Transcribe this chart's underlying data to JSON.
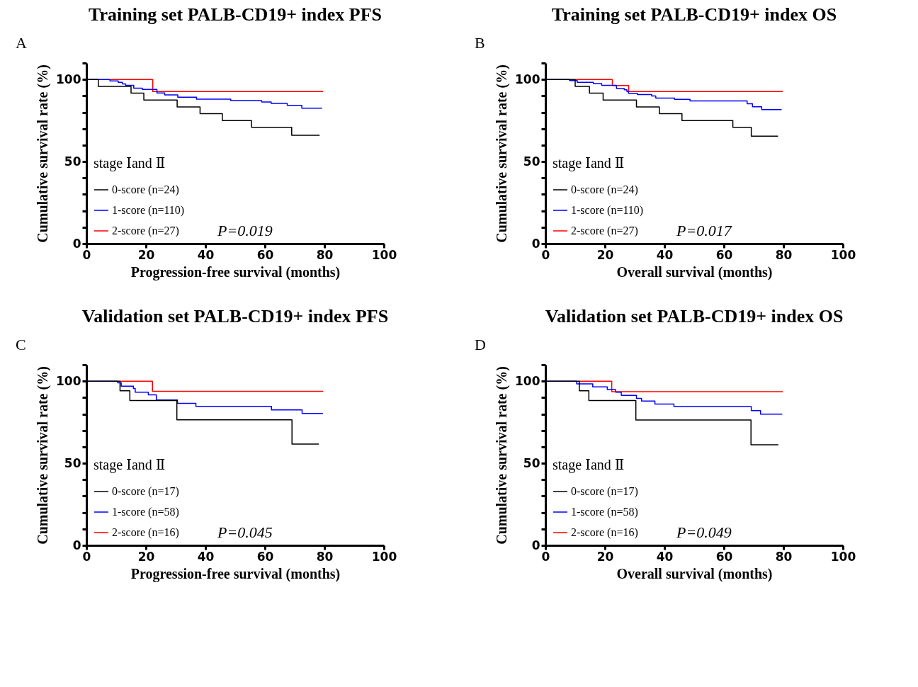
{
  "chart_data": [
    {
      "type": "step",
      "title": "Training set PALB-CD19+ index PFS",
      "xlabel": "Progression-free survival (months)",
      "ylabel": "Cumulative survival rate (%)",
      "legend_title": "stage Ⅰand Ⅱ",
      "legend": "bottom left",
      "grid": false,
      "annotations": [
        "A",
        "P=0.019"
      ],
      "xlim": [
        0,
        100
      ],
      "xticks": [
        0,
        20,
        40,
        60,
        80,
        100
      ],
      "ylim": [
        0,
        110
      ],
      "yticks": [
        0,
        {
          "value": 10,
          "label": null
        },
        {
          "value": 20,
          "label": null
        },
        {
          "value": 30,
          "label": null
        },
        {
          "value": 40,
          "label": null
        },
        50,
        {
          "value": 60,
          "label": null
        },
        {
          "value": 70,
          "label": null
        },
        {
          "value": 80,
          "label": null
        },
        {
          "value": 90,
          "label": null
        },
        100,
        {
          "value": 110,
          "label": null
        }
      ],
      "series": [
        {
          "name": "0-score (n=24)",
          "color": "#000000",
          "x": [
            0,
            4,
            15,
            19.3,
            30.5,
            38.2,
            45.7,
            55.5,
            69,
            78.4
          ],
          "values": [
            100,
            95.8,
            91.7,
            87.5,
            83.3,
            79.2,
            75,
            70.8,
            66,
            66
          ]
        },
        {
          "name": "1-score (n=110)",
          "color": "#0000ff",
          "x": [
            0,
            7.9,
            10.7,
            12.1,
            13.2,
            15.9,
            18.8,
            23.7,
            26.3,
            30.7,
            37,
            48.5,
            58.9,
            62.1,
            67.5,
            72.4,
            79.2
          ],
          "values": [
            100,
            99.1,
            98.2,
            97.3,
            96.4,
            94.7,
            93.9,
            91.8,
            90.6,
            89.2,
            88,
            87.1,
            86.3,
            85.4,
            84.2,
            82.5,
            82.5
          ]
        },
        {
          "name": "2-score (n=27)",
          "color": "#ff0000",
          "x": [
            7.9,
            22.3,
            79.6
          ],
          "values": [
            100,
            92.6,
            92.6
          ]
        }
      ]
    },
    {
      "type": "step",
      "title": "Training set PALB-CD19+ index OS",
      "xlabel": "Overall survival (months)",
      "ylabel": "Cumulative survival rate (%)",
      "legend_title": "stage Ⅰand Ⅱ",
      "legend": "bottom left",
      "grid": false,
      "annotations": [
        "B",
        "P=0.017"
      ],
      "xlim": [
        0,
        100
      ],
      "xticks": [
        0,
        20,
        40,
        60,
        80,
        100
      ],
      "ylim": [
        0,
        110
      ],
      "yticks": [
        0,
        {
          "value": 10,
          "label": null
        },
        {
          "value": 20,
          "label": null
        },
        {
          "value": 30,
          "label": null
        },
        {
          "value": 40,
          "label": null
        },
        50,
        {
          "value": 60,
          "label": null
        },
        {
          "value": 70,
          "label": null
        },
        {
          "value": 80,
          "label": null
        },
        {
          "value": 90,
          "label": null
        },
        100,
        {
          "value": 110,
          "label": null
        }
      ],
      "series": [
        {
          "name": "0-score (n=24)",
          "color": "#000000",
          "x": [
            0,
            10,
            14.8,
            19.4,
            30.6,
            38.3,
            45.9,
            63,
            69.2,
            78.2
          ],
          "values": [
            100,
            95.8,
            91.7,
            87.5,
            83.3,
            79.2,
            75,
            70.8,
            65.5,
            65.5
          ]
        },
        {
          "name": "1-score (n=110)",
          "color": "#0000ff",
          "x": [
            0,
            8.1,
            10.7,
            16.1,
            18.9,
            23.9,
            26.5,
            27.4,
            27.9,
            30.9,
            35.7,
            37.1,
            43.4,
            48.6,
            67.8,
            69.6,
            72.7,
            79.4
          ],
          "values": [
            100,
            99.3,
            98.2,
            97.5,
            96.4,
            94.5,
            93.7,
            92.6,
            91.6,
            90.8,
            89.9,
            88.7,
            87.9,
            86.9,
            85.2,
            83.4,
            81.6,
            81.6
          ]
        },
        {
          "name": "2-score (n=27)",
          "color": "#ff0000",
          "x": [
            10,
            22.5,
            28,
            79.8
          ],
          "values": [
            100,
            96.3,
            92.6,
            92.6
          ]
        }
      ]
    },
    {
      "type": "step",
      "title": "Validation set PALB-CD19+ index PFS",
      "xlabel": "Progression-free survival (months)",
      "ylabel": "Cumulative survival rate (%)",
      "legend_title": "stage Ⅰand Ⅱ",
      "legend": "bottom left",
      "grid": false,
      "annotations": [
        "C",
        "P=0.045"
      ],
      "xlim": [
        0,
        100
      ],
      "xticks": [
        0,
        20,
        40,
        60,
        80,
        100
      ],
      "ylim": [
        0,
        110
      ],
      "yticks": [
        0,
        {
          "value": 10,
          "label": null
        },
        {
          "value": 20,
          "label": null
        },
        {
          "value": 30,
          "label": null
        },
        {
          "value": 40,
          "label": null
        },
        50,
        {
          "value": 60,
          "label": null
        },
        {
          "value": 70,
          "label": null
        },
        {
          "value": 80,
          "label": null
        },
        {
          "value": 90,
          "label": null
        },
        100,
        {
          "value": 110,
          "label": null
        }
      ],
      "series": [
        {
          "name": "0-score (n=17)",
          "color": "#000000",
          "x": [
            0,
            11.3,
            14.6,
            30.4,
            69.1,
            78.1
          ],
          "values": [
            100,
            94.1,
            88.2,
            76.5,
            61.7,
            61.7
          ]
        },
        {
          "name": "1-score (n=58)",
          "color": "#0000ff",
          "x": [
            0,
            10.5,
            11.7,
            15.8,
            16.4,
            20.8,
            23.5,
            30.6,
            36.8,
            62.2,
            72.5,
            79.5
          ],
          "values": [
            100,
            99,
            96.9,
            95.5,
            93.3,
            91.7,
            88.5,
            86.5,
            84.7,
            82.5,
            80.3,
            80.3
          ]
        },
        {
          "name": "2-score (n=16)",
          "color": "#ff0000",
          "x": [
            11.3,
            22.2,
            79.6
          ],
          "values": [
            100,
            93.8,
            93.8
          ]
        }
      ]
    },
    {
      "type": "step",
      "title": "Validation set PALB-CD19+ index OS",
      "xlabel": "Overall survival (months)",
      "ylabel": "Cumulative survival rate (%)",
      "legend_title": "stage Ⅰand Ⅱ",
      "legend": "bottom left",
      "grid": false,
      "annotations": [
        "D",
        "P=0.049"
      ],
      "xlim": [
        0,
        100
      ],
      "xticks": [
        0,
        20,
        40,
        60,
        80,
        100
      ],
      "ylim": [
        0,
        110
      ],
      "yticks": [
        0,
        {
          "value": 10,
          "label": null
        },
        {
          "value": 20,
          "label": null
        },
        {
          "value": 30,
          "label": null
        },
        {
          "value": 40,
          "label": null
        },
        50,
        {
          "value": 60,
          "label": null
        },
        {
          "value": 70,
          "label": null
        },
        {
          "value": 80,
          "label": null
        },
        {
          "value": 90,
          "label": null
        },
        100,
        {
          "value": 110,
          "label": null
        }
      ],
      "series": [
        {
          "name": "0-score (n=17)",
          "color": "#000000",
          "x": [
            0,
            11.4,
            14.6,
            30.4,
            69.1,
            78.3
          ],
          "values": [
            100,
            94.1,
            88.2,
            76.4,
            61.3,
            61.3
          ]
        },
        {
          "name": "1-score (n=58)",
          "color": "#0000ff",
          "x": [
            0,
            10.5,
            15.9,
            20.8,
            23.6,
            25.5,
            30.6,
            32.3,
            36.8,
            43.2,
            69.2,
            72.3,
            79.6
          ],
          "values": [
            100,
            98.3,
            96.5,
            94.9,
            93.3,
            91.3,
            89.5,
            87.9,
            86.1,
            84.5,
            82.1,
            79.9,
            79.9
          ]
        },
        {
          "name": "2-score (n=16)",
          "color": "#ff0000",
          "x": [
            11.4,
            22.3,
            79.8
          ],
          "values": [
            100,
            93.6,
            93.6
          ]
        }
      ]
    }
  ]
}
